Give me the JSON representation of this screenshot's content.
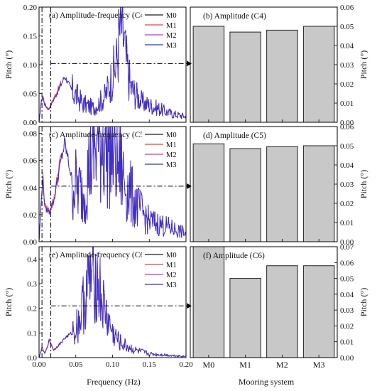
{
  "chart_data": [
    {
      "type": "line",
      "title": "(a) Amplitude-frequency (C4)",
      "xlabel": "",
      "ylabel": "Pitch (°)",
      "xlim": [
        0,
        0.2
      ],
      "ylim": [
        0,
        0.2
      ],
      "yticks": [
        "0.00",
        "0.05",
        "0.10",
        "0.15",
        "0.20"
      ],
      "legend": "top-right",
      "series_names": [
        "M0",
        "M1",
        "M2",
        "M3"
      ],
      "series_colors": [
        "#1a1a1a",
        "#e8433f",
        "#cc33cc",
        "#3333cc"
      ],
      "ref_lines": {
        "x1": 0.004,
        "x2": 0.016,
        "y": 0.102
      },
      "peaks": [
        [
          0,
          0.0
        ],
        [
          0.003,
          0.035
        ],
        [
          0.005,
          0.045
        ],
        [
          0.008,
          0.03
        ],
        [
          0.013,
          0.022
        ],
        [
          0.02,
          0.04
        ],
        [
          0.028,
          0.06
        ],
        [
          0.035,
          0.08
        ],
        [
          0.045,
          0.055
        ],
        [
          0.06,
          0.032
        ],
        [
          0.075,
          0.025
        ],
        [
          0.09,
          0.045
        ],
        [
          0.105,
          0.1
        ],
        [
          0.11,
          0.16
        ],
        [
          0.113,
          0.175
        ],
        [
          0.118,
          0.11
        ],
        [
          0.125,
          0.06
        ],
        [
          0.14,
          0.035
        ],
        [
          0.16,
          0.025
        ],
        [
          0.18,
          0.015
        ],
        [
          0.2,
          0.01
        ]
      ],
      "noise": 0.55
    },
    {
      "type": "bar",
      "title": "(b) Amplitude (C4)",
      "categories": [
        "M0",
        "M1",
        "M2",
        "M3"
      ],
      "values": [
        0.05,
        0.047,
        0.048,
        0.05
      ],
      "ylabel": "Pitch (°)",
      "ylim": [
        0,
        0.06
      ],
      "yticks": [
        "0.00",
        "0.01",
        "0.02",
        "0.03",
        "0.04",
        "0.05",
        "0.06"
      ],
      "show_xticklabels": false
    },
    {
      "type": "line",
      "title": "(c) Amplitude-frequency (C5)",
      "xlabel": "",
      "ylabel": "Pitch (°)",
      "xlim": [
        0,
        0.2
      ],
      "ylim": [
        0,
        0.085
      ],
      "yticks": [
        "0.00",
        "0.02",
        "0.04",
        "0.06",
        "0.08"
      ],
      "ytick_values": [
        0,
        0.02,
        0.04,
        0.06,
        0.08
      ],
      "legend": "top-right",
      "series_names": [
        "M0",
        "M1",
        "M2",
        "M3"
      ],
      "series_colors": [
        "#1a1a1a",
        "#e8433f",
        "#cc33cc",
        "#3333cc"
      ],
      "ref_lines": {
        "x1": 0.004,
        "x2": 0.016,
        "y": 0.041
      },
      "peaks": [
        [
          0,
          0.0
        ],
        [
          0.003,
          0.03
        ],
        [
          0.005,
          0.048
        ],
        [
          0.008,
          0.025
        ],
        [
          0.014,
          0.022
        ],
        [
          0.02,
          0.03
        ],
        [
          0.028,
          0.055
        ],
        [
          0.035,
          0.073
        ],
        [
          0.045,
          0.045
        ],
        [
          0.06,
          0.035
        ],
        [
          0.07,
          0.06
        ],
        [
          0.08,
          0.075
        ],
        [
          0.09,
          0.08
        ],
        [
          0.1,
          0.07
        ],
        [
          0.11,
          0.055
        ],
        [
          0.12,
          0.04
        ],
        [
          0.135,
          0.025
        ],
        [
          0.15,
          0.015
        ],
        [
          0.17,
          0.012
        ],
        [
          0.2,
          0.006
        ]
      ],
      "noise": 0.7
    },
    {
      "type": "bar",
      "title": "(d) Amplitude (C5)",
      "categories": [
        "M0",
        "M1",
        "M2",
        "M3"
      ],
      "values": [
        0.051,
        0.0485,
        0.0495,
        0.05
      ],
      "ylabel": "Pitch (°)",
      "ylim": [
        0,
        0.06
      ],
      "yticks": [
        "0.00",
        "0.01",
        "0.02",
        "0.03",
        "0.04",
        "0.05",
        "0.06"
      ],
      "show_xticklabels": false
    },
    {
      "type": "line",
      "title": "(e) Amplitude-frequency (C6)",
      "xlabel": "Frequency (Hz)",
      "ylabel": "Pitch (°)",
      "xlim": [
        0,
        0.2
      ],
      "ylim": [
        0,
        0.45
      ],
      "yticks": [
        "0.0",
        "0.1",
        "0.2",
        "0.3",
        "0.4"
      ],
      "ytick_values": [
        0,
        0.1,
        0.2,
        0.3,
        0.4
      ],
      "xticks": [
        "0.00",
        "0.05",
        "0.10",
        "0.15",
        "0.20"
      ],
      "legend": "top-right",
      "series_names": [
        "M0",
        "M1",
        "M2",
        "M3"
      ],
      "series_colors": [
        "#1a1a1a",
        "#e8433f",
        "#cc33cc",
        "#3333cc"
      ],
      "ref_lines": {
        "x1": 0.004,
        "x2": 0.016,
        "y": 0.21
      },
      "peaks": [
        [
          0,
          0.0
        ],
        [
          0.004,
          0.04
        ],
        [
          0.008,
          0.015
        ],
        [
          0.014,
          0.07
        ],
        [
          0.02,
          0.03
        ],
        [
          0.03,
          0.06
        ],
        [
          0.035,
          0.08
        ],
        [
          0.045,
          0.1
        ],
        [
          0.055,
          0.15
        ],
        [
          0.065,
          0.28
        ],
        [
          0.075,
          0.35
        ],
        [
          0.08,
          0.3
        ],
        [
          0.09,
          0.18
        ],
        [
          0.1,
          0.1
        ],
        [
          0.11,
          0.06
        ],
        [
          0.13,
          0.03
        ],
        [
          0.15,
          0.015
        ],
        [
          0.2,
          0.005
        ]
      ],
      "noise": 0.6
    },
    {
      "type": "bar",
      "title": "(f) Amplitude (C6)",
      "categories": [
        "M0",
        "M1",
        "M2",
        "M3"
      ],
      "values": [
        0.07,
        0.05,
        0.058,
        0.058
      ],
      "xlabel": "Mooring system",
      "ylabel": "Pitch (°)",
      "ylim": [
        0,
        0.07
      ],
      "yticks": [
        "0.00",
        "0.01",
        "0.02",
        "0.03",
        "0.04",
        "0.05",
        "0.06",
        "0.07"
      ],
      "show_xticklabels": true
    }
  ]
}
